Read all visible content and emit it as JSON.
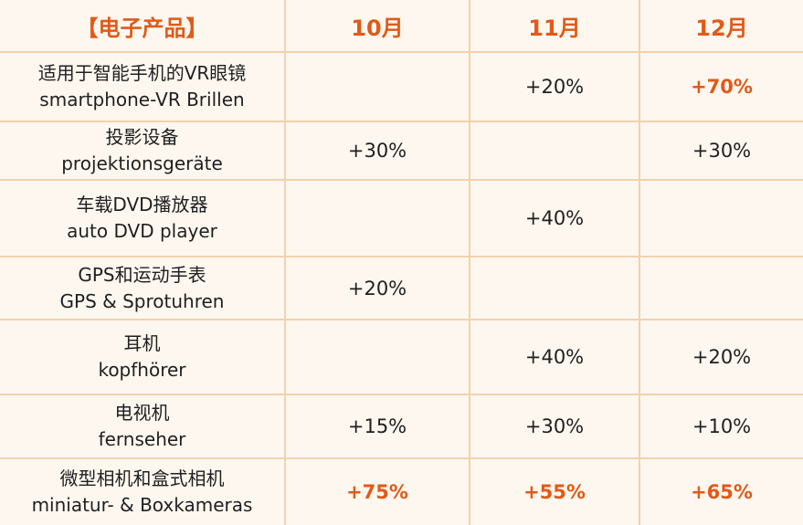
{
  "header": {
    "product": "【电子产品】",
    "oct": "10月",
    "nov": "11月",
    "dec": "12月"
  },
  "rows": [
    {
      "zh": "适用于智能手机的VR眼镜",
      "en": "smartphone-VR Brillen",
      "oct": "",
      "nov": "+20%",
      "dec": "+70%"
    },
    {
      "zh": "投影设备",
      "en": "projektionsgeräte",
      "oct": "+30%",
      "nov": "",
      "dec": "+30%"
    },
    {
      "zh": "车载DVD播放器",
      "en": "auto DVD player",
      "oct": "",
      "nov": "+40%",
      "dec": ""
    },
    {
      "zh": "GPS和运动手表",
      "en": "GPS & Sprotuhren",
      "oct": "+20%",
      "nov": "",
      "dec": ""
    },
    {
      "zh": "耳机",
      "en": "kopfhörer",
      "oct": "",
      "nov": "+40%",
      "dec": "+20%"
    },
    {
      "zh": "电视机",
      "en": "fernseher",
      "oct": "+15%",
      "nov": "+30%",
      "dec": "+10%"
    },
    {
      "zh": "微型相机和盒式相机",
      "en": "miniatur- & Boxkameras",
      "oct": "+75%",
      "nov": "+55%",
      "dec": "+65%"
    }
  ],
  "colors": {
    "accent": "#e05a18",
    "background": "#fdf7ef",
    "grid": "#f1d2ad"
  }
}
